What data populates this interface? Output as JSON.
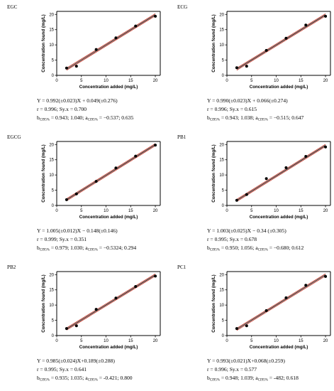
{
  "colors": {
    "band": "#c0392b",
    "fit": "#000000",
    "axis": "#000000",
    "point": "#000000"
  },
  "axes": {
    "xlabel": "Concentration added (mg/L)",
    "ylabel": "Concentration found (mg/L)",
    "xticks": [
      "0",
      "5",
      "10",
      "15",
      "20"
    ],
    "yticks": [
      "0",
      "5",
      "10",
      "15",
      "20"
    ]
  },
  "chart_data": [
    {
      "type": "scatter",
      "title": "EGC",
      "x": [
        2,
        4,
        8,
        12,
        16,
        20
      ],
      "y": [
        2.4,
        3.0,
        8.5,
        12.3,
        16.2,
        19.4
      ],
      "fit": {
        "slope": 0.992,
        "intercept": 0.049
      },
      "xlim": [
        0,
        21
      ],
      "ylim": [
        0,
        21
      ],
      "stats": {
        "eq": "Y = 0.992(±0.023)X + 0.049(±0.276)",
        "r_text": "r = 0.996; Sy.x = 0.700",
        "b_vals": "= 0.943; 1.040;",
        "a_vals": "= −0.537; 0.635"
      }
    },
    {
      "type": "scatter",
      "title": "ECG",
      "x": [
        2,
        4,
        8,
        12,
        16,
        20
      ],
      "y": [
        2.5,
        3.0,
        8.2,
        12.2,
        16.5,
        19.4
      ],
      "fit": {
        "slope": 0.99,
        "intercept": 0.066
      },
      "xlim": [
        0,
        21
      ],
      "ylim": [
        0,
        21
      ],
      "stats": {
        "eq": "Y = 0.990(±0.023)X + 0.066(±0.274)",
        "r_text": "r = 0.996; Sy.x = 0.615",
        "b_vals": "= 0.943; 1.038;",
        "a_vals": "= −0.515; 0.647"
      }
    },
    {
      "type": "scatter",
      "title": "EGCG",
      "x": [
        2,
        4,
        8,
        12,
        16,
        20
      ],
      "y": [
        1.9,
        3.8,
        7.9,
        12.3,
        16.2,
        19.8
      ],
      "fit": {
        "slope": 1.005,
        "intercept": -0.148
      },
      "xlim": [
        0,
        21
      ],
      "ylim": [
        0,
        21
      ],
      "stats": {
        "eq": "Y = 1.005(±0.012)X − 0.148(±0.146)",
        "r_text": "r = 0.999; Sy.x = 0.351",
        "b_vals": "= 0.979; 1.030;",
        "a_vals": "= −0.5324; 0.294"
      }
    },
    {
      "type": "scatter",
      "title": "PB1",
      "x": [
        2,
        4,
        8,
        12,
        16,
        20
      ],
      "y": [
        1.7,
        3.6,
        8.8,
        12.4,
        16.1,
        19.2
      ],
      "fit": {
        "slope": 1.003,
        "intercept": -0.34
      },
      "xlim": [
        0,
        21
      ],
      "ylim": [
        0,
        21
      ],
      "stats": {
        "eq": "Y = 1.003(±0.025)X − 0.34 (±0.305)",
        "r_text": "r = 0.995; Sy.x = 0.678",
        "b_vals": "= 0.950; 1.056;",
        "a_vals": "= −0.680; 0.612"
      }
    },
    {
      "type": "scatter",
      "title": "PB2",
      "x": [
        2,
        4,
        8,
        12,
        16,
        20
      ],
      "y": [
        2.3,
        3.2,
        8.6,
        12.3,
        16.1,
        19.5
      ],
      "fit": {
        "slope": 0.985,
        "intercept": 0.189
      },
      "xlim": [
        0,
        21
      ],
      "ylim": [
        0,
        21
      ],
      "stats": {
        "eq": "Y = 0.985(±0.024)X+0.189(±0.288)",
        "r_text": "r = 0.995; Sy.x = 0.641",
        "b_vals": "= 0.935; 1.035;",
        "a_vals": "= -0.421; 0.800"
      }
    },
    {
      "type": "scatter",
      "title": "PC1",
      "x": [
        2,
        4,
        8,
        12,
        16,
        20
      ],
      "y": [
        2.3,
        3.2,
        8.2,
        12.4,
        16.5,
        19.4
      ],
      "fit": {
        "slope": 0.993,
        "intercept": 0.068
      },
      "xlim": [
        0,
        21
      ],
      "ylim": [
        0,
        21
      ],
      "stats": {
        "eq": "Y = 0.993(±0.021)X+0.068(±0.259)",
        "r_text": "r = 0.996; Sy.x = 0.577",
        "b_vals": "= 0.948; 1.039;",
        "a_vals": "= -482; 0.618"
      }
    }
  ]
}
